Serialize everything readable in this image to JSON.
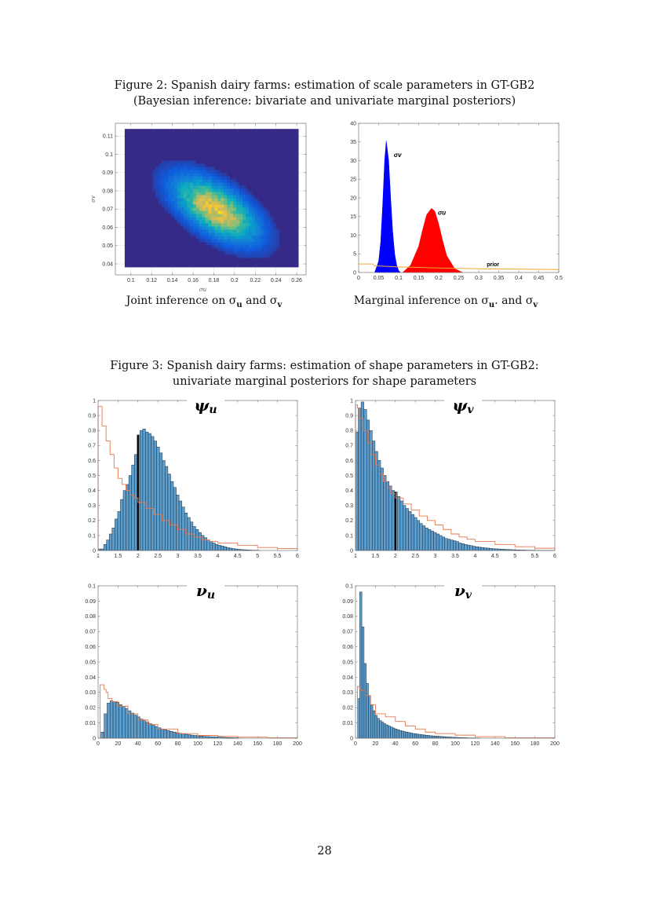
{
  "figure2": {
    "caption_line1": "Figure 2: Spanish dairy farms: estimation of scale parameters in GT-GB2",
    "caption_line2": "(Bayesian inference: bivariate and univariate marginal posteriors)",
    "left_subcaption": {
      "prefix": "Joint inference on σ",
      "sub1": "u",
      "mid": " and σ",
      "sub2": "v"
    },
    "right_subcaption": {
      "prefix": "Marginal inference on σ",
      "sub1": "u",
      "mid": ". and σ",
      "sub2": "v"
    }
  },
  "figure3": {
    "caption_line1": "Figure 3: Spanish dairy farms: estimation of shape parameters in GT-GB2:",
    "caption_line2": "univariate marginal posteriors for shape parameters"
  },
  "page_number": "28",
  "chart_data": [
    {
      "id": "joint",
      "type": "heatmap",
      "xlabel": "σu",
      "ylabel": "σv",
      "xlim": [
        0.085,
        0.269
      ],
      "ylim": [
        0.034,
        0.117
      ],
      "data_extent_x": [
        0.094,
        0.2615
      ],
      "data_extent_y": [
        0.0383,
        0.1139
      ],
      "xticks": [
        "0.1",
        "0.12",
        "0.14",
        "0.16",
        "0.18",
        "0.2",
        "0.22",
        "0.24",
        "0.26"
      ],
      "yticks": [
        "0.04",
        "0.05",
        "0.06",
        "0.07",
        "0.08",
        "0.09",
        "0.1",
        "0.11"
      ],
      "density_mode": [
        0.182,
        0.07
      ],
      "density_sd": [
        0.026,
        0.0115
      ],
      "correlation": -0.6,
      "colormap": [
        "#352a87",
        "#0f5cdd",
        "#1481d6",
        "#06a4ca",
        "#2eb7a4",
        "#87bf77",
        "#d1bb59",
        "#fec832",
        "#f9fb0e"
      ],
      "grid": true
    },
    {
      "id": "marginal",
      "type": "area",
      "xlim": [
        0,
        0.5
      ],
      "ylim": [
        0,
        40
      ],
      "xticks": [
        "0",
        "0.05",
        "0.1",
        "0.15",
        "0.2",
        "0.25",
        "0.3",
        "0.35",
        "0.4",
        "0.45",
        "0.5"
      ],
      "yticks": [
        "0",
        "5",
        "10",
        "15",
        "20",
        "25",
        "30",
        "35",
        "40"
      ],
      "series": [
        {
          "name": "σv",
          "color": "#0000ff",
          "label_at": [
            0.088,
            31
          ],
          "x": [
            0.04,
            0.05,
            0.055,
            0.06,
            0.065,
            0.069,
            0.075,
            0.08,
            0.085,
            0.09,
            0.095,
            0.1,
            0.105
          ],
          "y": [
            0,
            3,
            8,
            18,
            30,
            35.3,
            30,
            20,
            11,
            5,
            2,
            0.5,
            0
          ]
        },
        {
          "name": "σu",
          "color": "#ff0000",
          "label_at": [
            0.198,
            15.5
          ],
          "x": [
            0.11,
            0.13,
            0.15,
            0.16,
            0.17,
            0.182,
            0.19,
            0.2,
            0.21,
            0.22,
            0.24,
            0.26
          ],
          "y": [
            0,
            2,
            7,
            11.5,
            15.5,
            17.2,
            16.5,
            13,
            8.5,
            4.5,
            1,
            0
          ]
        },
        {
          "name": "prior",
          "color": "#f0a830",
          "label_at": [
            0.32,
            1.7
          ],
          "line": true,
          "x": [
            0,
            0.035,
            0.04,
            0.1,
            0.2,
            0.3,
            0.4,
            0.5
          ],
          "y": [
            2.3,
            2.3,
            1.8,
            1.5,
            1.2,
            1.0,
            0.9,
            0.8
          ]
        }
      ]
    },
    {
      "id": "psi_u",
      "type": "bar",
      "title": "ψ",
      "title_sub": "u",
      "xlim": [
        1,
        6
      ],
      "ylim": [
        0,
        1
      ],
      "xticks": [
        "1",
        "1.5",
        "2",
        "2.5",
        "3",
        "3.5",
        "4",
        "4.5",
        "5",
        "5.5",
        "6"
      ],
      "yticks": [
        "0",
        "0.1",
        "0.2",
        "0.3",
        "0.4",
        "0.5",
        "0.6",
        "0.7",
        "0.8",
        "0.9",
        "1"
      ],
      "bin_start": 1.0,
      "bin_width": 0.07,
      "highlight_x": 2,
      "values": [
        0.01,
        0.01,
        0.04,
        0.07,
        0.11,
        0.15,
        0.21,
        0.26,
        0.34,
        0.4,
        0.44,
        0.5,
        0.57,
        0.64,
        0.77,
        0.8,
        0.81,
        0.79,
        0.78,
        0.76,
        0.73,
        0.69,
        0.65,
        0.6,
        0.56,
        0.51,
        0.46,
        0.42,
        0.37,
        0.33,
        0.29,
        0.25,
        0.22,
        0.19,
        0.16,
        0.14,
        0.12,
        0.1,
        0.085,
        0.07,
        0.06,
        0.05,
        0.04,
        0.035,
        0.03,
        0.025,
        0.02,
        0.016,
        0.013,
        0.01,
        0.008,
        0.006,
        0.005,
        0.004,
        0.003,
        0.002,
        0.002,
        0.001
      ],
      "prior": {
        "x": [
          1,
          1.1,
          1.2,
          1.3,
          1.4,
          1.5,
          1.6,
          1.7,
          1.8,
          1.9,
          2.0,
          2.2,
          2.4,
          2.6,
          2.8,
          3.0,
          3.2,
          3.4,
          3.6,
          3.8,
          4.0,
          4.5,
          5.0,
          5.5,
          6.0
        ],
        "y": [
          0.96,
          0.83,
          0.73,
          0.64,
          0.55,
          0.48,
          0.44,
          0.4,
          0.37,
          0.35,
          0.32,
          0.28,
          0.24,
          0.2,
          0.17,
          0.14,
          0.11,
          0.09,
          0.07,
          0.06,
          0.05,
          0.035,
          0.02,
          0.013,
          0.01
        ]
      }
    },
    {
      "id": "psi_v",
      "type": "bar",
      "title": "ψ",
      "title_sub": "v",
      "xlim": [
        1,
        6
      ],
      "ylim": [
        0,
        1
      ],
      "xticks": [
        "1",
        "1.5",
        "2",
        "2.5",
        "3",
        "3.5",
        "4",
        "4.5",
        "5",
        "5.5",
        "6"
      ],
      "yticks": [
        "0",
        "0.1",
        "0.2",
        "0.3",
        "0.4",
        "0.5",
        "0.6",
        "0.7",
        "0.8",
        "0.9",
        "1"
      ],
      "bin_start": 1.0,
      "bin_width": 0.07,
      "highlight_x": 2,
      "values": [
        0.79,
        0.95,
        0.99,
        0.94,
        0.87,
        0.8,
        0.73,
        0.66,
        0.6,
        0.55,
        0.5,
        0.46,
        0.43,
        0.4,
        0.39,
        0.36,
        0.33,
        0.3,
        0.28,
        0.26,
        0.24,
        0.22,
        0.2,
        0.18,
        0.165,
        0.15,
        0.14,
        0.13,
        0.12,
        0.11,
        0.1,
        0.09,
        0.08,
        0.075,
        0.07,
        0.065,
        0.06,
        0.05,
        0.045,
        0.04,
        0.036,
        0.032,
        0.028,
        0.025,
        0.022,
        0.02,
        0.018,
        0.016,
        0.014,
        0.012,
        0.011,
        0.01,
        0.009,
        0.008,
        0.007,
        0.006,
        0.005,
        0.004,
        0.004,
        0.003,
        0.003,
        0.002,
        0.002,
        0.002,
        0.001,
        0.001,
        0.001,
        0.001,
        0.001,
        0.001,
        0.001
      ],
      "prior": {
        "x": [
          1,
          1.05,
          1.1,
          1.2,
          1.3,
          1.4,
          1.5,
          1.6,
          1.7,
          1.8,
          1.9,
          2.0,
          2.2,
          2.4,
          2.6,
          2.8,
          3.0,
          3.2,
          3.4,
          3.6,
          3.8,
          4.0,
          4.5,
          5.0,
          5.5,
          6.0
        ],
        "y": [
          0.97,
          0.95,
          0.88,
          0.8,
          0.72,
          0.64,
          0.57,
          0.51,
          0.46,
          0.42,
          0.38,
          0.35,
          0.31,
          0.27,
          0.23,
          0.2,
          0.17,
          0.14,
          0.11,
          0.09,
          0.075,
          0.06,
          0.04,
          0.025,
          0.015,
          0.01
        ]
      }
    },
    {
      "id": "nu_u",
      "type": "bar",
      "title": "ν",
      "title_sub": "u",
      "xlim": [
        0,
        200
      ],
      "ylim": [
        0,
        0.1
      ],
      "xticks": [
        "0",
        "20",
        "40",
        "60",
        "80",
        "100",
        "120",
        "140",
        "160",
        "180",
        "200"
      ],
      "yticks": [
        "0",
        "0.01",
        "0.02",
        "0.03",
        "0.04",
        "0.05",
        "0.06",
        "0.07",
        "0.08",
        "0.09",
        "0.1"
      ],
      "bin_start": 3,
      "bin_width": 3,
      "values": [
        0.004,
        0.016,
        0.023,
        0.0245,
        0.024,
        0.0235,
        0.022,
        0.021,
        0.0195,
        0.018,
        0.0165,
        0.0152,
        0.014,
        0.0125,
        0.0115,
        0.0105,
        0.0095,
        0.0085,
        0.0077,
        0.0068,
        0.0061,
        0.0055,
        0.005,
        0.0045,
        0.004,
        0.0036,
        0.0032,
        0.0029,
        0.0026,
        0.0023,
        0.002,
        0.0018,
        0.0016,
        0.0014,
        0.0012,
        0.0011,
        0.001,
        0.0009,
        0.0008,
        0.0007,
        0.0006,
        0.0005,
        0.0004,
        0.0004,
        0.0003,
        0.0003
      ],
      "prior": {
        "x": [
          2,
          6,
          8,
          10,
          14,
          20,
          30,
          40,
          50,
          60,
          80,
          100,
          120,
          140,
          170,
          200
        ],
        "y": [
          0.035,
          0.032,
          0.03,
          0.026,
          0.024,
          0.021,
          0.016,
          0.012,
          0.009,
          0.006,
          0.003,
          0.0018,
          0.0012,
          0.0007,
          0.0003,
          0.0001
        ]
      }
    },
    {
      "id": "nu_v",
      "type": "bar",
      "title": "ν",
      "title_sub": "v",
      "xlim": [
        0,
        200
      ],
      "ylim": [
        0,
        0.1
      ],
      "xticks": [
        "0",
        "20",
        "40",
        "60",
        "80",
        "100",
        "120",
        "140",
        "160",
        "180",
        "200"
      ],
      "yticks": [
        "0",
        "0.01",
        "0.02",
        "0.03",
        "0.04",
        "0.05",
        "0.06",
        "0.07",
        "0.08",
        "0.09",
        "0.1"
      ],
      "bin_start": 2,
      "bin_width": 2.2,
      "values": [
        0.026,
        0.096,
        0.073,
        0.049,
        0.036,
        0.028,
        0.022,
        0.018,
        0.015,
        0.013,
        0.0115,
        0.0105,
        0.0095,
        0.0087,
        0.008,
        0.0073,
        0.0067,
        0.0061,
        0.0056,
        0.0051,
        0.0047,
        0.0043,
        0.004,
        0.0037,
        0.0034,
        0.0031,
        0.0029,
        0.0027,
        0.0025,
        0.0023,
        0.0021,
        0.0019,
        0.0018,
        0.0016,
        0.0015,
        0.0014,
        0.0013,
        0.0012,
        0.0011,
        0.001,
        0.0009,
        0.0008,
        0.0007,
        0.0006,
        0.0005,
        0.0005,
        0.0004,
        0.0004,
        0.0003,
        0.0003,
        0.0002,
        0.0002,
        0.0002,
        0.0001,
        0.0001,
        0.0001
      ],
      "prior": {
        "x": [
          2,
          4,
          6,
          10,
          15,
          20,
          25,
          30,
          40,
          50,
          60,
          70,
          80,
          100,
          120,
          150,
          200
        ],
        "y": [
          0.034,
          0.032,
          0.031,
          0.028,
          0.022,
          0.016,
          0.016,
          0.014,
          0.011,
          0.008,
          0.006,
          0.004,
          0.003,
          0.002,
          0.001,
          0.0003,
          0.0001
        ]
      }
    }
  ]
}
